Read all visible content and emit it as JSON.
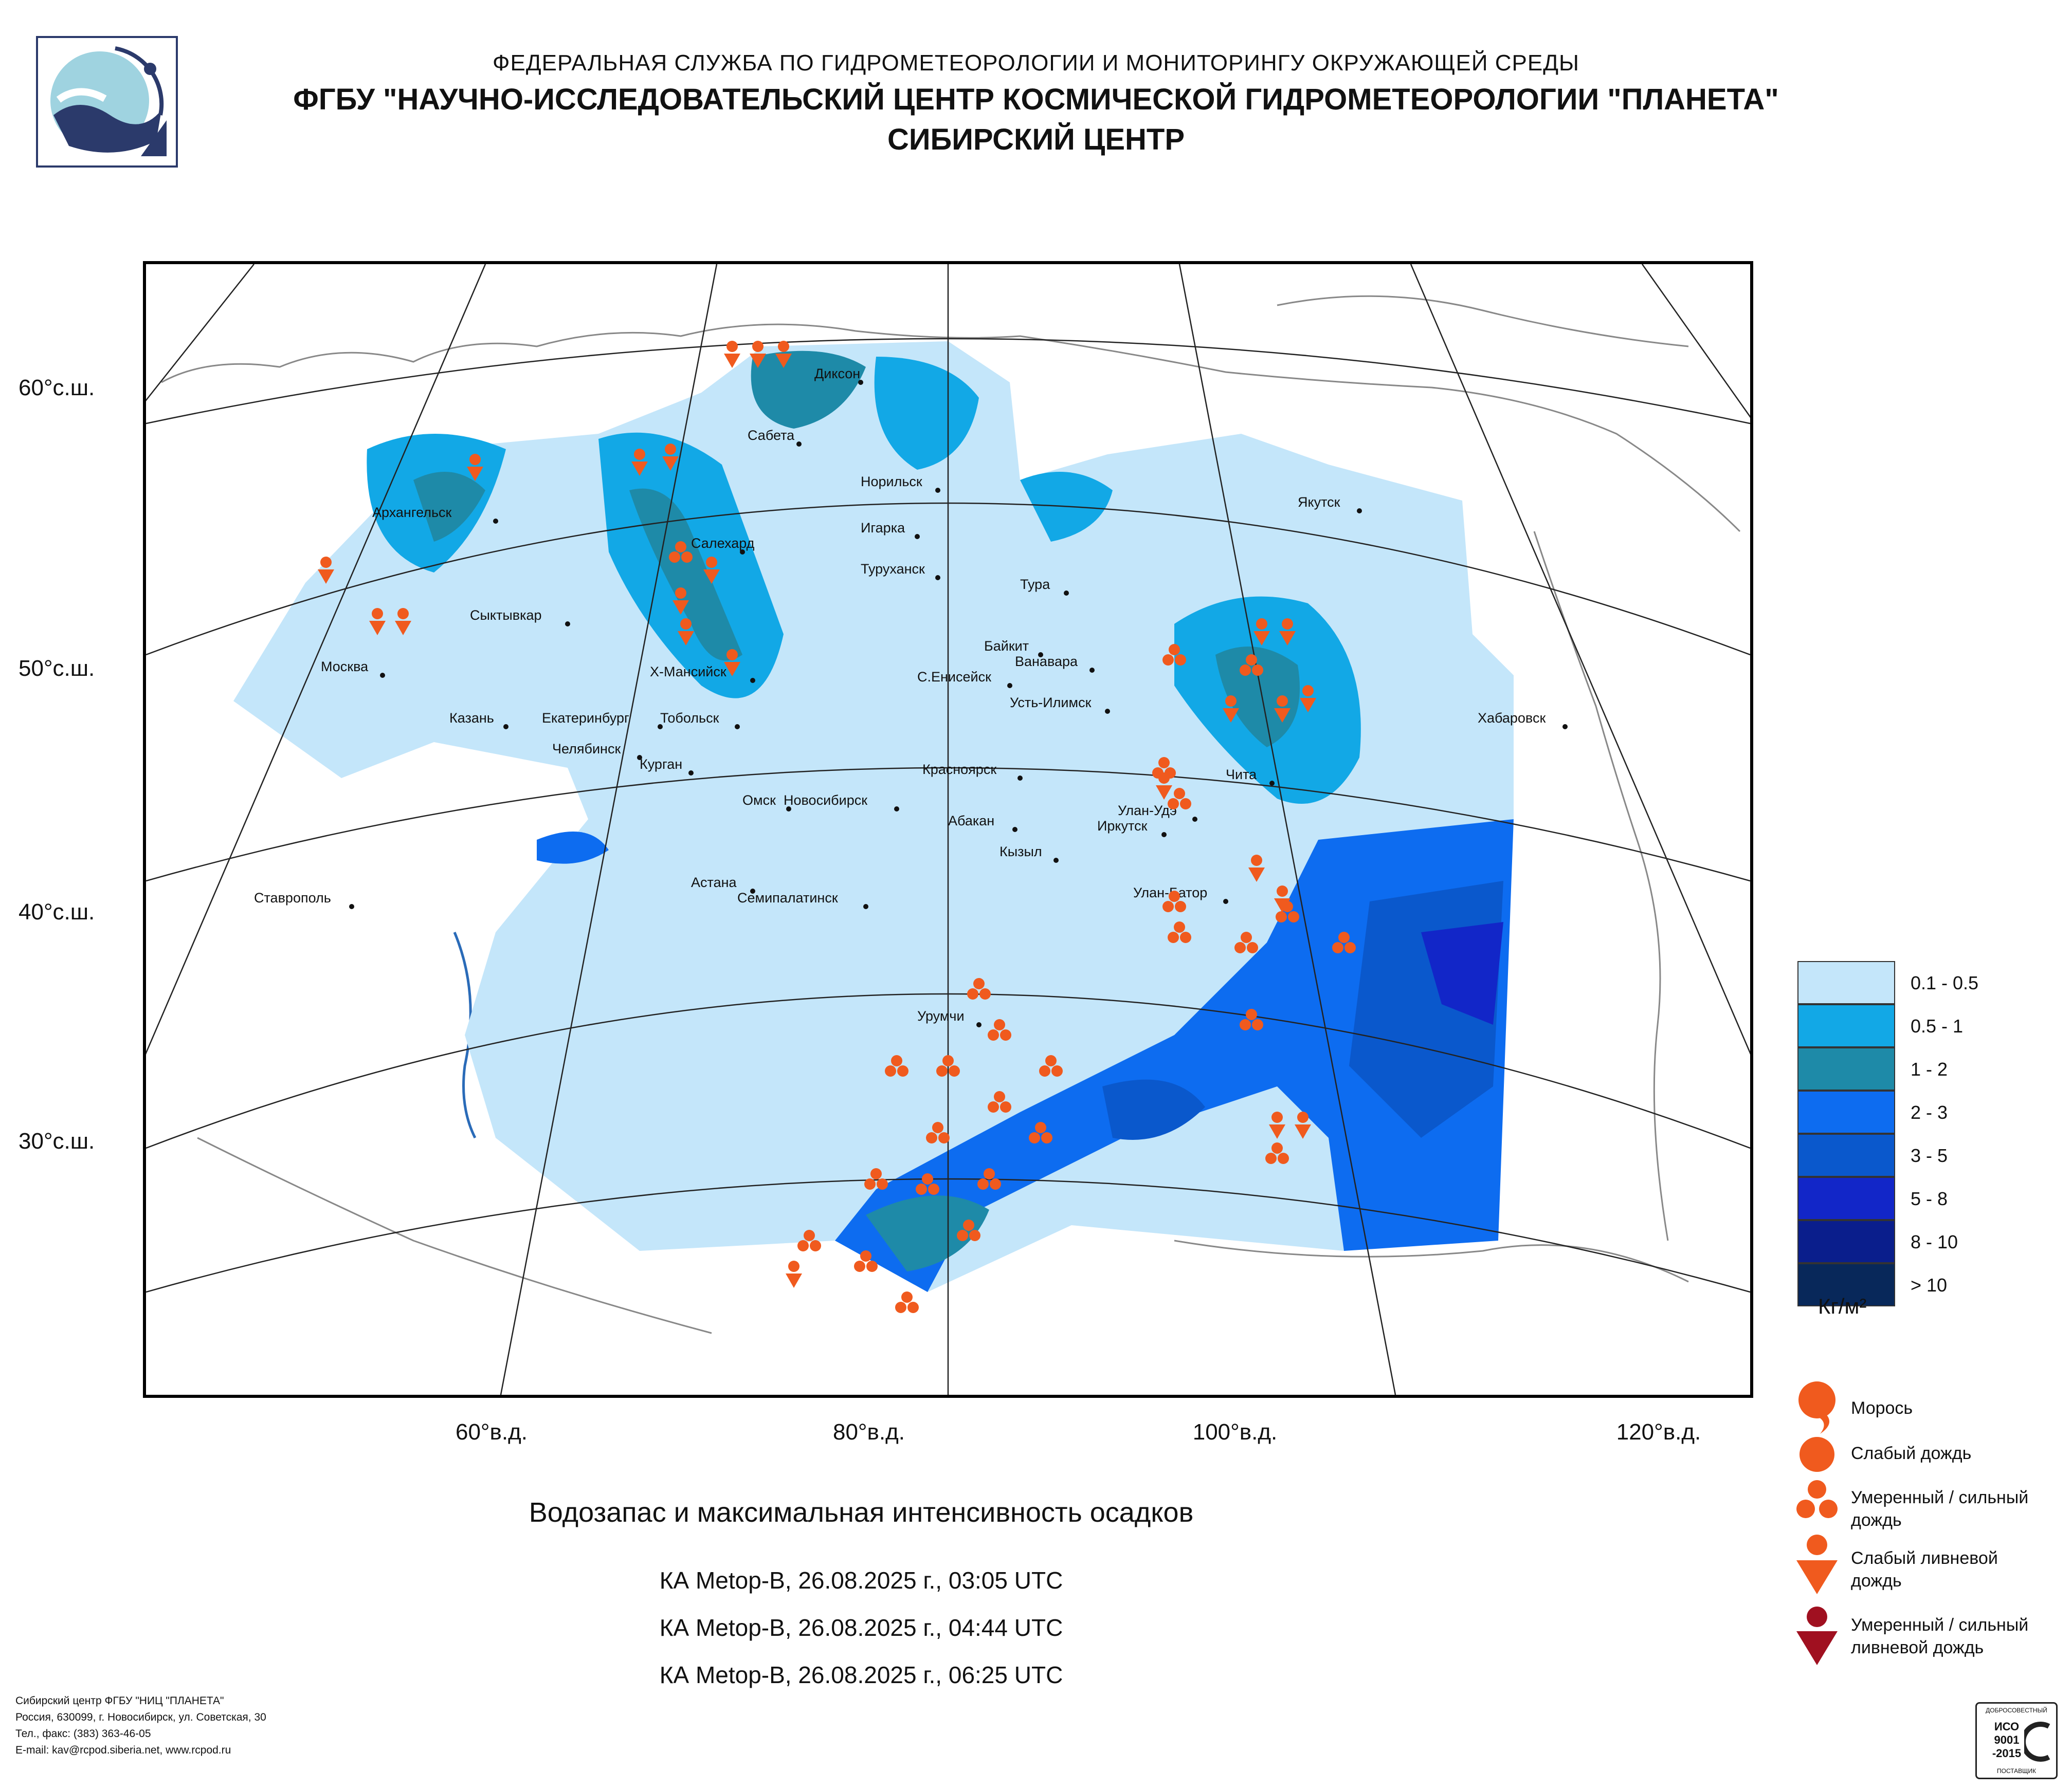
{
  "header": {
    "line1": "ФЕДЕРАЛЬНАЯ СЛУЖБА ПО ГИДРОМЕТЕОРОЛОГИИ И МОНИТОРИНГУ ОКРУЖАЮЩЕЙ СРЕДЫ",
    "line2": "ФГБУ \"НАУЧНО-ИССЛЕДОВАТЕЛЬСКИЙ ЦЕНТР КОСМИЧЕСКОЙ ГИДРОМЕТЕОРОЛОГИИ \"ПЛАНЕТА\"",
    "line3": "СИБИРСКИЙ ЦЕНТР"
  },
  "logo": {
    "icon": "planeta-logo",
    "colors": [
      "#9fd3e0",
      "#2b3a6b"
    ]
  },
  "map": {
    "latitude_labels": [
      "60°с.ш.",
      "50°с.ш.",
      "40°с.ш.",
      "30°с.ш."
    ],
    "longitude_labels": [
      "60°в.д.",
      "80°в.д.",
      "100°в.д.",
      "120°в.д."
    ],
    "cities": [
      "Диксон",
      "Сабета",
      "Норильск",
      "Архангельск",
      "Игарка",
      "Салехард",
      "Туруханск",
      "Тура",
      "Сыктывкар",
      "Байкит",
      "Ванавара",
      "Москва",
      "Х-Мансийск",
      "С.Енисейск",
      "Усть-Илимск",
      "Казань",
      "Екатеринбург",
      "Тобольск",
      "Челябинск",
      "Курган",
      "Красноярск",
      "Омск",
      "Новосибирск",
      "Абакан",
      "Иркутск",
      "Улан-Удэ",
      "Чита",
      "Кызыл",
      "Астана",
      "Семипалатинск",
      "Улан-Батор",
      "Ставрополь",
      "Урумчи",
      "Якутск",
      "Хабаровск"
    ]
  },
  "main_title": "Водозапас и максимальная интенсивность осадков",
  "passes": [
    "КА Metop-B, 26.08.2025 г., 03:05 UTC",
    "КА Metop-B, 26.08.2025 г., 04:44 UTC",
    "КА Metop-B, 26.08.2025 г., 06:25 UTC"
  ],
  "legend": {
    "classes": [
      {
        "label": "0.1 - 0.5",
        "color": "#c4e6fa"
      },
      {
        "label": "0.5 - 1",
        "color": "#12a8e6"
      },
      {
        "label": "1 - 2",
        "color": "#1e8aa8"
      },
      {
        "label": "2 - 3",
        "color": "#0d6cf0"
      },
      {
        "label": "3 - 5",
        "color": "#0a58cc"
      },
      {
        "label": "5 - 8",
        "color": "#1226c8"
      },
      {
        "label": "8 - 10",
        "color": "#0a1e8c"
      },
      {
        "label": "> 10",
        "color": "#08285a"
      }
    ],
    "unit": "Кг/м²"
  },
  "symbols": [
    {
      "icon": "drizzle-icon",
      "label": "Морось",
      "color": "#f05a1e"
    },
    {
      "icon": "light-rain-icon",
      "label": "Слабый дождь",
      "color": "#f05a1e"
    },
    {
      "icon": "moderate-rain-icon",
      "label": "Умеренный / сильный дождь",
      "color": "#f05a1e"
    },
    {
      "icon": "light-shower-icon",
      "label": "Слабый ливневой дождь",
      "color": "#f05a1e"
    },
    {
      "icon": "heavy-shower-icon",
      "label": "Умеренный / сильный ливневой дождь",
      "color": "#a01020"
    }
  ],
  "footer": [
    "Сибирский центр ФГБУ \"НИЦ \"ПЛАНЕТА\"",
    "Россия, 630099, г. Новосибирск, ул. Советская, 30",
    "Тел., факс: (383) 363-46-05",
    "E-mail: kav@rcpod.siberia.net, www.rcpod.ru"
  ],
  "iso_badge": {
    "top": "ДОБРОСОВЕСТНЫЙ",
    "lines": [
      "ИСО",
      "9001",
      "-2015"
    ],
    "bottom": "ПОСТАВЩИК"
  }
}
